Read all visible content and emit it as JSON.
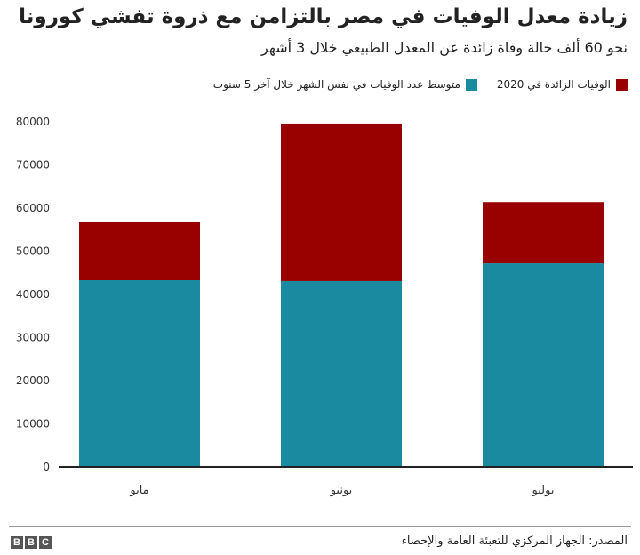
{
  "chart_data": {
    "type": "bar",
    "stacked": true,
    "title": "زيادة معدل الوفيات في مصر بالتزامن مع ذروة تفشي كورونا",
    "subtitle": "نحو 60 ألف حالة وفاة زائدة عن المعدل الطبيعي خلال 3 أشهر",
    "categories": [
      "مايو",
      "يونيو",
      "يوليو"
    ],
    "series": [
      {
        "name": "متوسط عدد الوفيات في نفس الشهر خلال آخر 5 سنوت",
        "color": "#1a8aa0",
        "values": [
          43300,
          43100,
          47200
        ]
      },
      {
        "name": "الوفيات الزائدة في 2020",
        "color": "#990000",
        "values": [
          13400,
          36500,
          14200
        ]
      }
    ],
    "ylim": [
      0,
      80000
    ],
    "yticks": [
      "0",
      "10000",
      "20000",
      "30000",
      "40000",
      "50000",
      "60000",
      "70000",
      "80000"
    ],
    "xlabel": "",
    "ylabel": "",
    "grid": false,
    "legend_position": "top-right"
  },
  "footer": {
    "source": "المصدر: الجهاز المركزي للتعبئة العامة والإحصاء",
    "logo": [
      "B",
      "B",
      "C"
    ]
  }
}
